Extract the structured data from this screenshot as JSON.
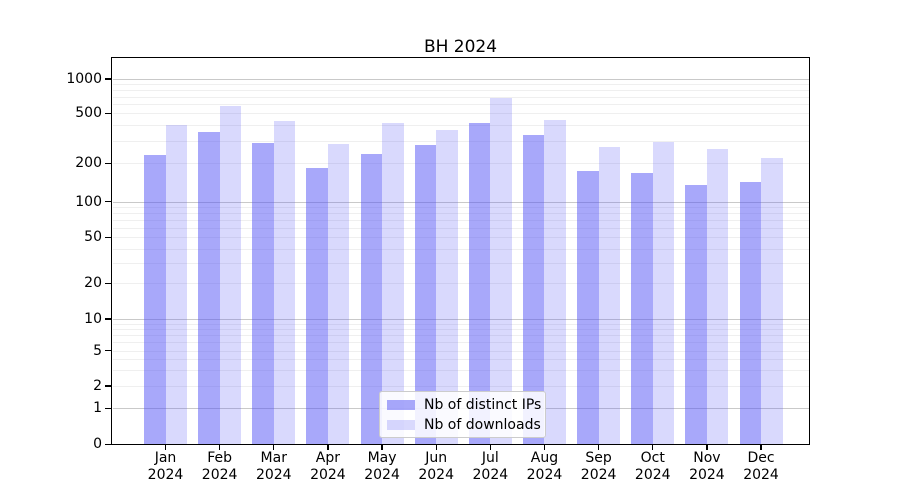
{
  "title": "BH 2024",
  "chart_data": {
    "type": "bar",
    "title": "BH 2024",
    "xlabel": "",
    "ylabel": "",
    "y_scale": "log-like with labeled ticks [0,1,2,5,10,20,50,100,200,500,1000]",
    "categories": [
      "Jan 2024",
      "Feb 2024",
      "Mar 2024",
      "Apr 2024",
      "May 2024",
      "Jun 2024",
      "Jul 2024",
      "Aug 2024",
      "Sep 2024",
      "Oct 2024",
      "Nov 2024",
      "Dec 2024"
    ],
    "months": [
      "Jan",
      "Feb",
      "Mar",
      "Apr",
      "May",
      "Jun",
      "Jul",
      "Aug",
      "Sep",
      "Oct",
      "Nov",
      "Dec"
    ],
    "year": "2024",
    "series": [
      {
        "name": "Nb of distinct IPs",
        "color": "rgba(82,82,245,0.50)",
        "values": [
          233,
          355,
          290,
          184,
          238,
          281,
          417,
          333,
          175,
          167,
          136,
          143
        ]
      },
      {
        "name": "Nb of downloads",
        "color": "rgba(82,82,245,0.22)",
        "values": [
          400,
          580,
          435,
          287,
          417,
          368,
          678,
          440,
          268,
          296,
          258,
          220
        ]
      }
    ],
    "yticks": [
      1000,
      500,
      200,
      100,
      50,
      20,
      10,
      5,
      2,
      1,
      0
    ],
    "ylim": [
      0,
      1500
    ],
    "grid": true,
    "legend_position": "lower center"
  },
  "colors": {
    "bar_dark": "rgba(82,82,245,0.50)",
    "bar_light": "rgba(82,82,245,0.22)",
    "grid_major": "#c9c9c9",
    "grid_minor": "#efefef",
    "spine": "#000000",
    "background": "#ffffff"
  }
}
